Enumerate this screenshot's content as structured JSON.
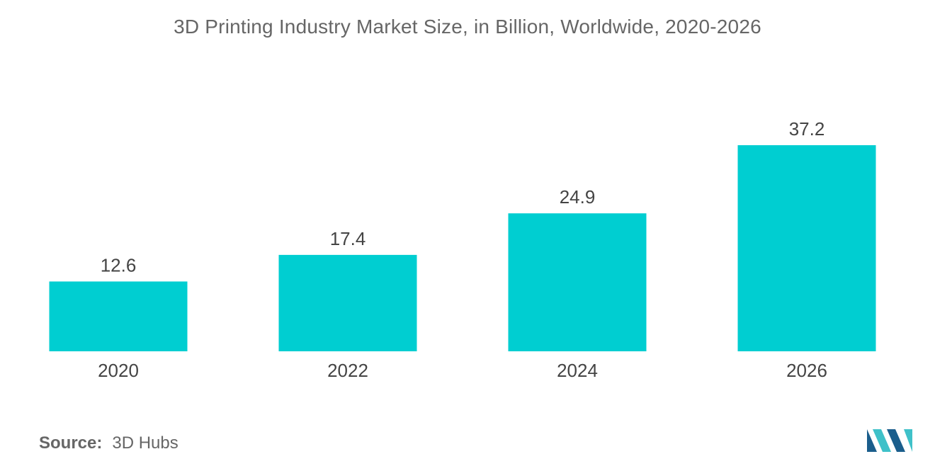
{
  "title": "3D Printing Industry Market Size, in Billion, Worldwide, 2020-2026",
  "source": {
    "label": "Source:",
    "value": "3D Hubs"
  },
  "colors": {
    "bar": "#00CED1",
    "logo_dark": "#1B5E8C",
    "logo_light": "#3FC1C9"
  },
  "chart_data": {
    "type": "bar",
    "title": "3D Printing Industry Market Size, in Billion, Worldwide, 2020-2026",
    "categories": [
      "2020",
      "2022",
      "2024",
      "2026"
    ],
    "values": [
      12.6,
      17.4,
      24.9,
      37.2
    ],
    "data_labels": [
      "12.6",
      "17.4",
      "24.9",
      "37.2"
    ],
    "xlabel": "",
    "ylabel": "",
    "ylim": [
      0,
      37.2
    ],
    "grid": false,
    "legend": "none"
  }
}
